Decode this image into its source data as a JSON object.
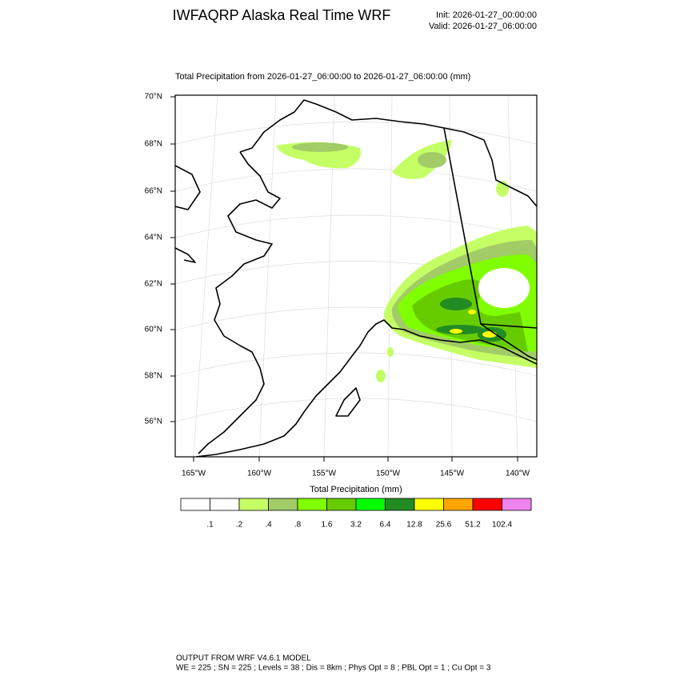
{
  "header": {
    "title": "IWFAQRP Alaska Real Time WRF",
    "init": "Init: 2026-01-27_00:00:00",
    "valid": "Valid: 2026-01-27_06:00:00"
  },
  "map": {
    "title": "Total Precipitation from 2026-01-27_06:00:00 to 2026-01-27_06:00:00   (mm)",
    "lat_labels": [
      "70°N",
      "68°N",
      "66°N",
      "64°N",
      "62°N",
      "60°N",
      "58°N",
      "56°N"
    ],
    "lon_labels": [
      "165°W",
      "160°W",
      "155°W",
      "150°W",
      "145°W",
      "140°W"
    ]
  },
  "colorbar": {
    "title": "Total Precipitation  (mm)",
    "colors": [
      "#ffffff",
      "#ffffff",
      "#c4ff66",
      "#a2cc66",
      "#80ff00",
      "#66cc00",
      "#00ff00",
      "#228b22",
      "#ffff00",
      "#ffa500",
      "#ff0000",
      "#ee82ee"
    ],
    "labels": [
      ".1",
      ".2",
      ".4",
      ".8",
      "1.6",
      "3.2",
      "6.4",
      "12.8",
      "25.6",
      "51.2",
      "102.4"
    ]
  },
  "footer": {
    "line1": "OUTPUT FROM WRF V4.6.1 MODEL",
    "line2": "WE = 225 ; SN = 225 ; Levels = 38 ; Dis = 8km ; Phys Opt = 8 ; PBL Opt = 1 ; Cu Opt = 3"
  }
}
